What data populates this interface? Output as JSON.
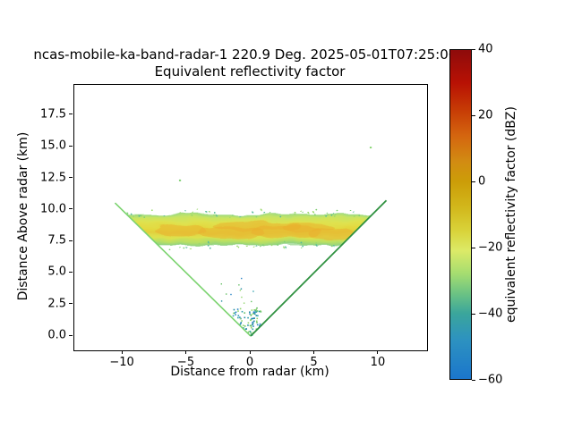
{
  "chart_data": {
    "type": "heatmap",
    "plot_kind": "radar RHI pseudocolor scan (vertical cross-section)",
    "title_line1": "ncas-mobile-ka-band-radar-1 220.9 Deg. 2025-05-01T07:25:06Z",
    "title_line2": "Equivalent reflectivity factor",
    "xlabel": "Distance from radar (km)",
    "ylabel": "Distance Above radar (km)",
    "xlim": [
      -13.78,
      13.78
    ],
    "ylim": [
      -1.13,
      19.9
    ],
    "x_ticks": [
      {
        "v": -10,
        "label": "−10"
      },
      {
        "v": -5,
        "label": "−5"
      },
      {
        "v": 0,
        "label": "0"
      },
      {
        "v": 5,
        "label": "5"
      },
      {
        "v": 10,
        "label": "10"
      }
    ],
    "y_ticks": [
      {
        "v": 17.5,
        "label": "17.5"
      },
      {
        "v": 15.0,
        "label": "15.0"
      },
      {
        "v": 12.5,
        "label": "12.5"
      },
      {
        "v": 10.0,
        "label": "10.0"
      },
      {
        "v": 7.5,
        "label": "7.5"
      },
      {
        "v": 5.0,
        "label": "5.0"
      },
      {
        "v": 2.5,
        "label": "2.5"
      },
      {
        "v": 0.0,
        "label": "0.0"
      }
    ],
    "colorbar": {
      "label": "equivalent reflectivity factor (dBZ)",
      "vmin": -60,
      "vmax": 40,
      "ticks": [
        {
          "v": 40,
          "label": "40"
        },
        {
          "v": 20,
          "label": "20"
        },
        {
          "v": 0,
          "label": "0"
        },
        {
          "v": -20,
          "label": "−20"
        },
        {
          "v": -40,
          "label": "−40"
        },
        {
          "v": -60,
          "label": "−60"
        }
      ],
      "stops": [
        [
          40,
          "#8e0b0b"
        ],
        [
          30,
          "#b81104"
        ],
        [
          22,
          "#c63a05"
        ],
        [
          14,
          "#d4650f"
        ],
        [
          6,
          "#d28c12"
        ],
        [
          0,
          "#cc9d08"
        ],
        [
          -8,
          "#d2b81c"
        ],
        [
          -15,
          "#d9d33a"
        ],
        [
          -21,
          "#dcea67"
        ],
        [
          -28,
          "#a5dd70"
        ],
        [
          -34,
          "#6cc383"
        ],
        [
          -40,
          "#3ba69b"
        ],
        [
          -48,
          "#2d92c0"
        ],
        [
          -60,
          "#1b76cc"
        ]
      ]
    },
    "features": {
      "scan_rays": {
        "comment": "RHI scan edge beams forming a V from the radar at origin",
        "vertex": [
          0,
          0
        ],
        "left_end": [
          -10.6,
          10.55
        ],
        "right_end": [
          10.6,
          10.75
        ],
        "left_color": "#7bd36f",
        "right_color": "#2f9140"
      },
      "echo_layer": {
        "comment": "horizontal cloud/precipitation layer",
        "x_min": -9.7,
        "x_max": 9.7,
        "z_base_km": 7.2,
        "z_top_km": 9.65,
        "core_dbz": -8,
        "mean_dbz": -14,
        "edge_dbz": -30,
        "gradient_stops": [
          [
            0,
            "#9cd982"
          ],
          [
            10,
            "#c8e563"
          ],
          [
            26,
            "#dfe24f"
          ],
          [
            45,
            "#e3d93f"
          ],
          [
            60,
            "#e2cf3c"
          ],
          [
            75,
            "#dde24e"
          ],
          [
            90,
            "#b5df66"
          ],
          [
            100,
            "#8ed184"
          ]
        ],
        "patch_color": "#eaae2b",
        "patch_opacity": 0.5,
        "orange_patches": [
          [
            -5.5,
            8.35,
            2.0,
            0.45
          ],
          [
            -1.5,
            8.2,
            2.6,
            0.5
          ],
          [
            2.8,
            8.25,
            2.8,
            0.5
          ],
          [
            6.3,
            8.1,
            1.8,
            0.45
          ],
          [
            0.5,
            8.7,
            3.5,
            0.35
          ],
          [
            4.5,
            8.6,
            2.0,
            0.35
          ]
        ],
        "edge_speckle_colors": [
          "#7fcf74",
          "#56b89a",
          "#9ad96c"
        ]
      },
      "near_radar_clutter": {
        "comment": "scattered low-level speckles near the radar vertex",
        "x_range": [
          -1.7,
          0.8
        ],
        "z_range": [
          0.1,
          2.3
        ],
        "count": 85,
        "sparse_count": 12,
        "sparse_x_range": [
          -2.8,
          0.5
        ],
        "sparse_z_range": [
          2.3,
          4.7
        ],
        "dbz_range": [
          -45,
          -25
        ],
        "colors": [
          "#2e9fae",
          "#2b84c6",
          "#63bf63",
          "#90d56a",
          "#1f8aa0"
        ]
      },
      "isolated_echoes": [
        {
          "x": -5.6,
          "z": 12.4,
          "color": "#79ce6b"
        },
        {
          "x": 9.3,
          "z": 15.0,
          "color": "#84d46e"
        }
      ]
    }
  }
}
